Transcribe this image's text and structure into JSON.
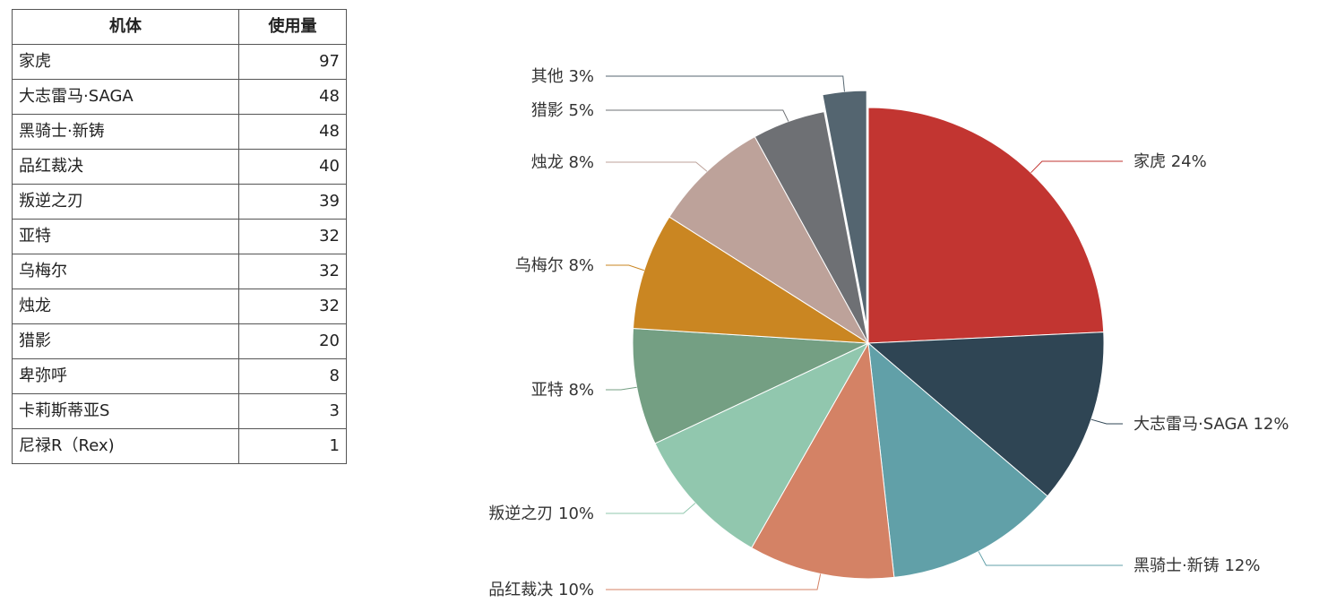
{
  "table": {
    "headers": [
      "机体",
      "使用量"
    ],
    "rows": [
      {
        "name": "家虎",
        "value": "97"
      },
      {
        "name": "大志雷马·SAGA",
        "value": "48"
      },
      {
        "name": "黑骑士·新铸",
        "value": "48"
      },
      {
        "name": "品红裁决",
        "value": "40"
      },
      {
        "name": "叛逆之刃",
        "value": "39"
      },
      {
        "name": "亚特",
        "value": "32"
      },
      {
        "name": "乌梅尔",
        "value": "32"
      },
      {
        "name": "烛龙",
        "value": "32"
      },
      {
        "name": "猎影",
        "value": "20"
      },
      {
        "name": "卑弥呼",
        "value": "8"
      },
      {
        "name": "卡莉斯蒂亚S",
        "value": "3"
      },
      {
        "name": "尼禄R（Rex)",
        "value": "1"
      }
    ]
  },
  "chart_data": {
    "type": "pie",
    "categories": [
      "家虎",
      "大志雷马·SAGA",
      "黑骑士·新铸",
      "品红裁决",
      "叛逆之刃",
      "亚特",
      "乌梅尔",
      "烛龙",
      "猎影",
      "其他"
    ],
    "values": [
      97,
      48,
      48,
      40,
      39,
      32,
      32,
      32,
      20,
      12
    ],
    "labels": [
      "家虎 24%",
      "大志雷马·SAGA 12%",
      "黑骑士·新铸 12%",
      "品红裁决 10%",
      "叛逆之刃 10%",
      "亚特 8%",
      "乌梅尔 8%",
      "烛龙 8%",
      "猎影 5%",
      "其他 3%"
    ],
    "colors": [
      "#c23531",
      "#2f4554",
      "#61a0a8",
      "#d48265",
      "#91c7ae",
      "#749f83",
      "#ca8622",
      "#bda29a",
      "#6e7074",
      "#546570"
    ],
    "exploded": [
      "其他"
    ],
    "start": "12 o'clock, clockwise"
  }
}
